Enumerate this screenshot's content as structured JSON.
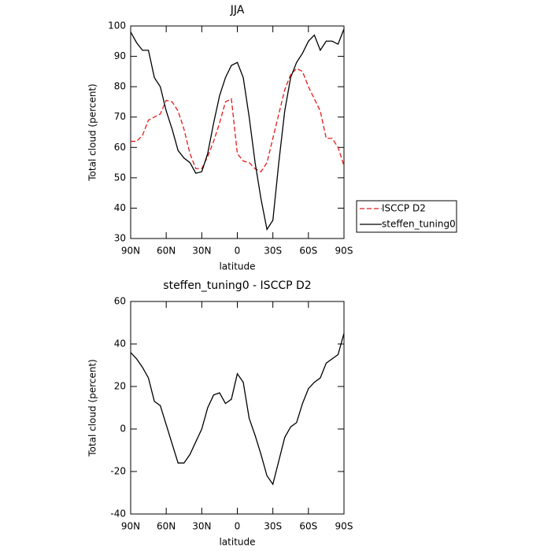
{
  "chart_data": [
    {
      "type": "line",
      "title": "JJA",
      "xlabel": "latitude",
      "ylabel": "Total cloud (percent)",
      "x": [
        90,
        85,
        80,
        75,
        70,
        65,
        60,
        55,
        50,
        45,
        40,
        35,
        30,
        25,
        20,
        15,
        10,
        5,
        0,
        -5,
        -10,
        -15,
        -20,
        -25,
        -30,
        -35,
        -40,
        -45,
        -50,
        -55,
        -60,
        -65,
        -70,
        -75,
        -80,
        -85,
        -90
      ],
      "series": [
        {
          "name": "ISCCP D2",
          "color": "#e41a1c",
          "linestyle": "dashed",
          "values": [
            62,
            62,
            64,
            69,
            70,
            71,
            75.5,
            75,
            72,
            66,
            58,
            53,
            53,
            57,
            62,
            68,
            75,
            76,
            58,
            55.5,
            55,
            53,
            52,
            55,
            63,
            71,
            79,
            84,
            86,
            85,
            80,
            76,
            72,
            63,
            63,
            60,
            54
          ]
        },
        {
          "name": "steffen_tuning0",
          "color": "#000000",
          "linestyle": "solid",
          "values": [
            98,
            94.5,
            92,
            92,
            83,
            80,
            72,
            66,
            59,
            56.5,
            55,
            51.5,
            52,
            58,
            68,
            77,
            83,
            87,
            88,
            83,
            70,
            55,
            43,
            33,
            36,
            55,
            72,
            83,
            88,
            91,
            95,
            97,
            92,
            95,
            95,
            94,
            99
          ]
        }
      ],
      "xlim": [
        90,
        -90
      ],
      "xticks": [
        {
          "value": 90,
          "label": "90N"
        },
        {
          "value": 60,
          "label": "60N"
        },
        {
          "value": 30,
          "label": "30N"
        },
        0,
        {
          "value": -30,
          "label": "30S"
        },
        {
          "value": -60,
          "label": "60S"
        },
        {
          "value": -90,
          "label": "90S"
        }
      ],
      "ylim": [
        30,
        100
      ],
      "yticks": [
        30,
        40,
        50,
        60,
        70,
        80,
        90,
        100
      ],
      "legend": "right"
    },
    {
      "type": "line",
      "title": "steffen_tuning0 - ISCCP D2",
      "xlabel": "latitude",
      "ylabel": "Total cloud (percent)",
      "x": [
        90,
        85,
        80,
        75,
        70,
        65,
        60,
        55,
        50,
        45,
        40,
        35,
        30,
        25,
        20,
        15,
        10,
        5,
        0,
        -5,
        -10,
        -15,
        -20,
        -25,
        -30,
        -35,
        -40,
        -45,
        -50,
        -55,
        -60,
        -65,
        -70,
        -75,
        -80,
        -85,
        -90
      ],
      "series": [
        {
          "color": "#000000",
          "linestyle": "solid",
          "values": [
            36,
            33,
            29,
            24,
            13,
            11,
            2,
            -7,
            -16,
            -16,
            -12,
            -6,
            0,
            10,
            16,
            17,
            12,
            14,
            26,
            22,
            5,
            -3,
            -12,
            -22,
            -26,
            -15,
            -4,
            1,
            3,
            12,
            19,
            22,
            24,
            31,
            33,
            35,
            45
          ]
        }
      ],
      "xlim": [
        90,
        -90
      ],
      "xticks": [
        {
          "value": 90,
          "label": "90N"
        },
        {
          "value": 60,
          "label": "60N"
        },
        {
          "value": 30,
          "label": "30N"
        },
        0,
        {
          "value": -30,
          "label": "30S"
        },
        {
          "value": -60,
          "label": "60S"
        },
        {
          "value": -90,
          "label": "90S"
        }
      ],
      "ylim": [
        -40,
        60
      ],
      "yticks": [
        -40,
        -20,
        0,
        20,
        40,
        60
      ]
    }
  ]
}
